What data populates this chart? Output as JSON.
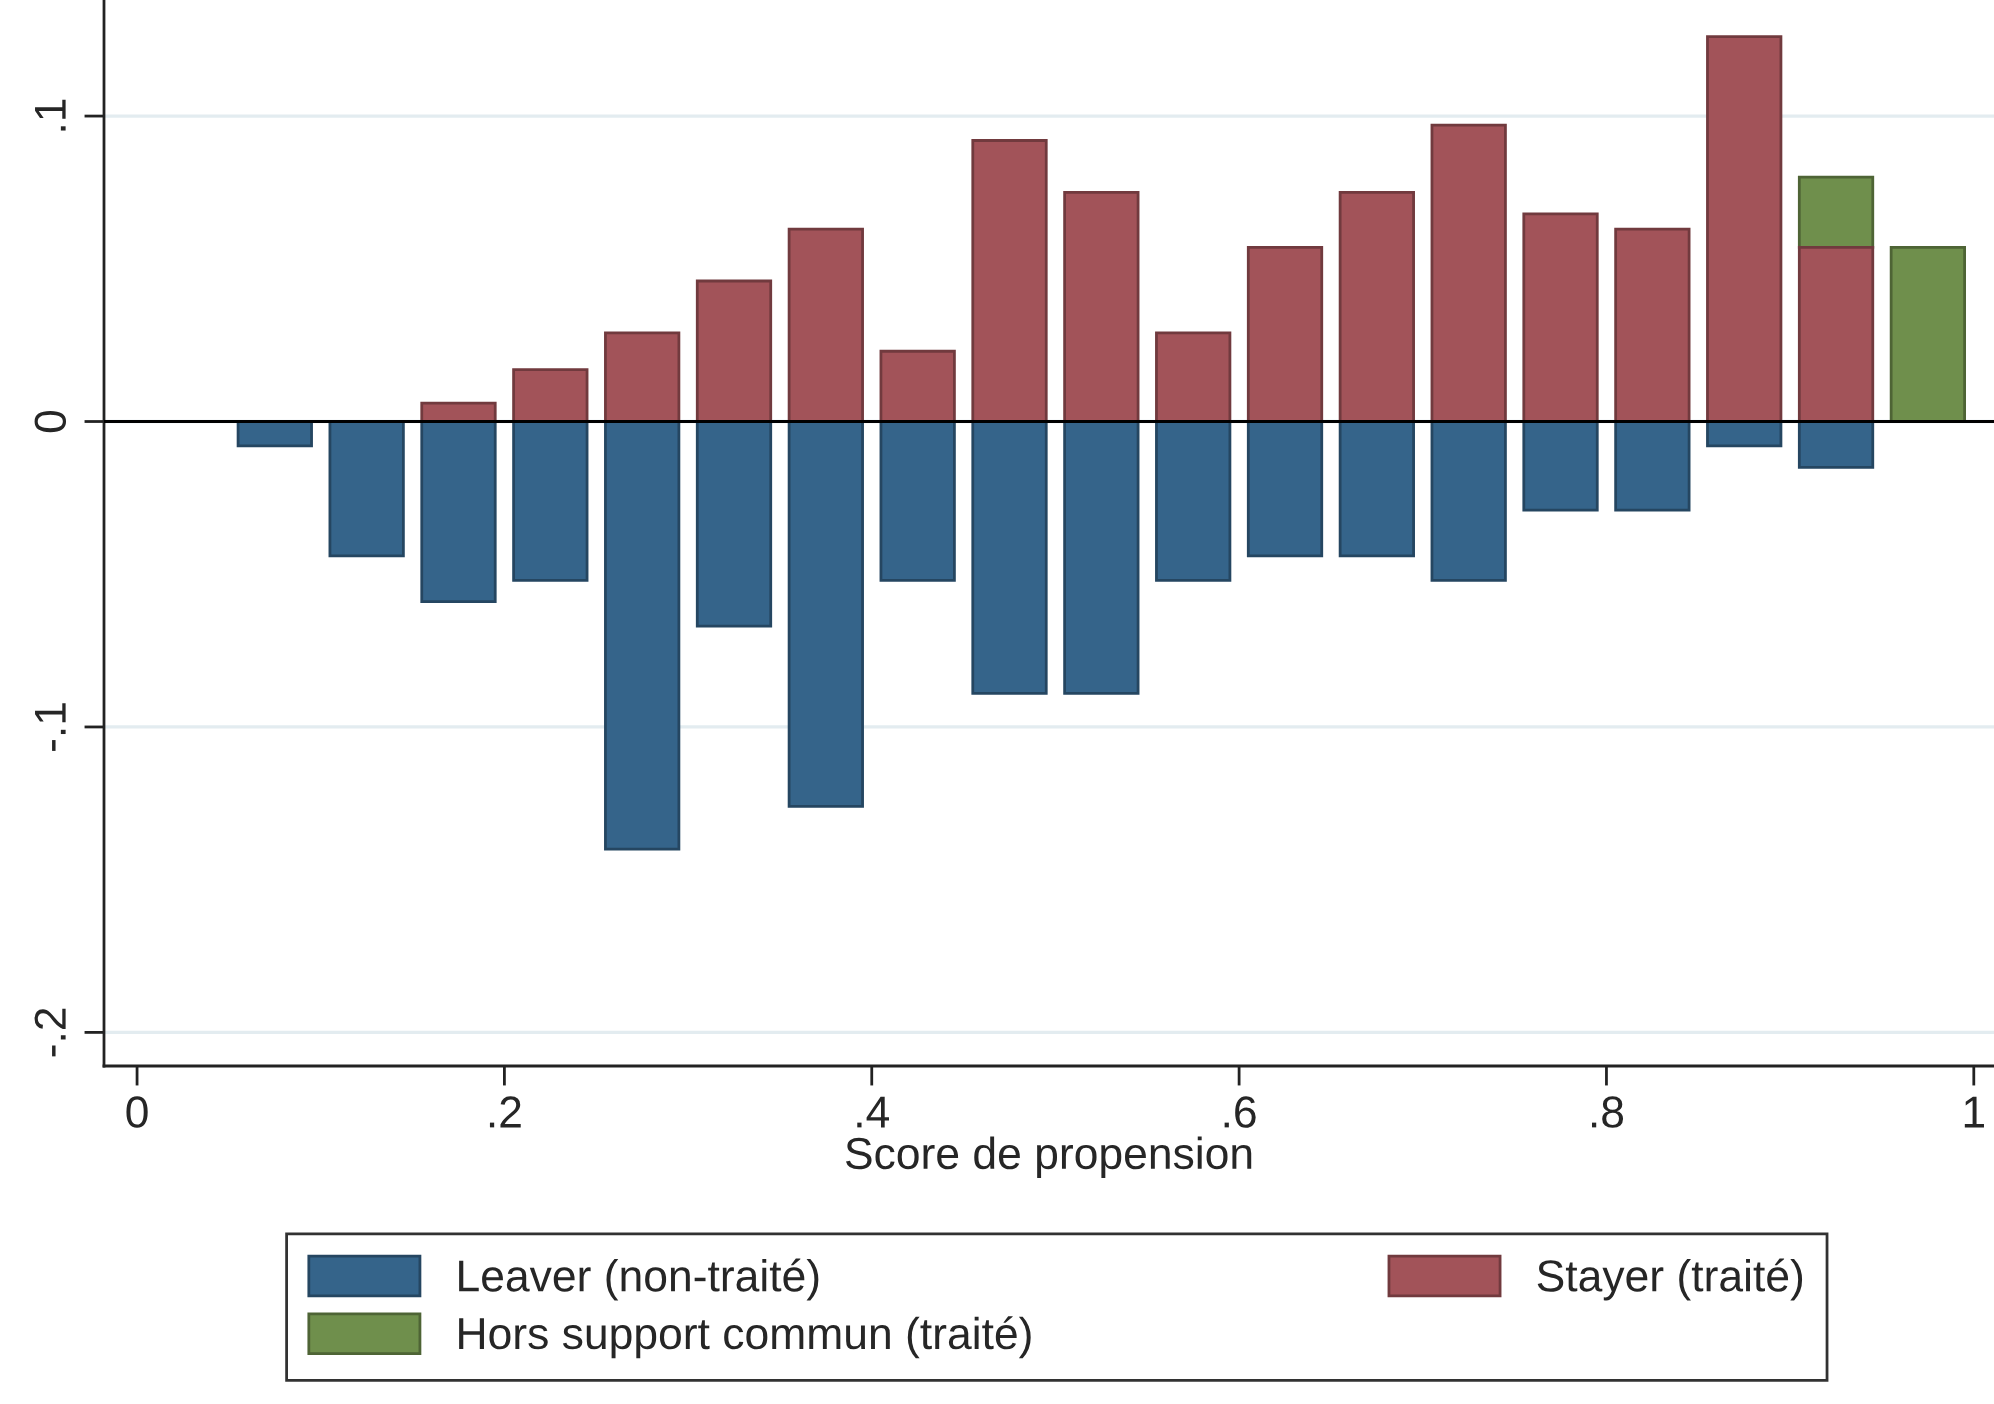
{
  "chart_data": {
    "type": "bar",
    "xlabel": "Score de propension",
    "xlim": [
      -0.018,
      1.011
    ],
    "ylim": [
      -0.211,
      0.138
    ],
    "xticks": [
      0,
      {
        "value": 0.2,
        "label": ".2"
      },
      {
        "value": 0.4,
        "label": ".4"
      },
      {
        "value": 0.6,
        "label": ".6"
      },
      {
        "value": 0.8,
        "label": ".8"
      },
      1
    ],
    "yticks": [
      {
        "value": -0.2,
        "label": "-.2"
      },
      {
        "value": -0.1,
        "label": "-.1"
      },
      0,
      {
        "value": 0.1,
        "label": ".1"
      }
    ],
    "grid": "y",
    "legend": "bottom",
    "ref_lines": [
      {
        "axis": "y",
        "value": 0,
        "color": "#000000"
      }
    ],
    "series": [
      {
        "name": "Hors support commun (traité)",
        "color": "#6f8f4c",
        "x": [
          0.925,
          0.975
        ],
        "base": [
          0.057,
          0
        ],
        "values": [
          0.023,
          0.057
        ]
      },
      {
        "name": "Leaver (non-traité)",
        "color": "#35648a",
        "x": [
          0.075,
          0.125,
          0.175,
          0.225,
          0.275,
          0.325,
          0.375,
          0.425,
          0.475,
          0.525,
          0.575,
          0.625,
          0.675,
          0.725,
          0.775,
          0.825,
          0.875,
          0.925
        ],
        "values": [
          -0.008,
          -0.044,
          -0.059,
          -0.052,
          -0.14,
          -0.067,
          -0.126,
          -0.052,
          -0.089,
          -0.089,
          -0.052,
          -0.044,
          -0.044,
          -0.052,
          -0.029,
          -0.029,
          -0.008,
          -0.015
        ]
      },
      {
        "name": "Stayer (traité)",
        "color": "#a25359",
        "x": [
          0.175,
          0.225,
          0.275,
          0.325,
          0.375,
          0.425,
          0.475,
          0.525,
          0.575,
          0.625,
          0.675,
          0.725,
          0.775,
          0.825,
          0.875,
          0.925
        ],
        "values": [
          0.006,
          0.017,
          0.029,
          0.046,
          0.063,
          0.023,
          0.092,
          0.075,
          0.029,
          0.057,
          0.075,
          0.097,
          0.068,
          0.063,
          0.126,
          0.057
        ]
      }
    ]
  }
}
